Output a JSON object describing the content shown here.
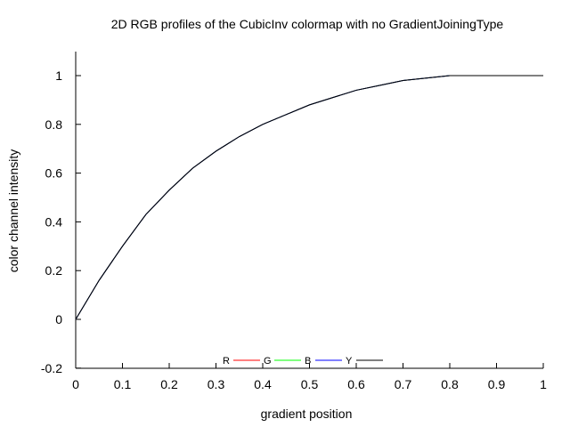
{
  "chart_data": {
    "type": "line",
    "title": "2D RGB profiles of the CubicInv colormap with no GradientJoiningType",
    "xlabel": "gradient position",
    "ylabel": "color channel intensity",
    "xlim": [
      0,
      1
    ],
    "ylim": [
      -0.2,
      1.1
    ],
    "xticks": [
      "0",
      "0.1",
      "0.2",
      "0.3",
      "0.4",
      "0.5",
      "0.6",
      "0.7",
      "0.8",
      "0.9",
      "1"
    ],
    "yticks": [
      "-0.2",
      "0",
      "0.2",
      "0.4",
      "0.6",
      "0.8",
      "1"
    ],
    "grid": false,
    "legend_position": "bottom-center",
    "series": [
      {
        "name": "R",
        "color": "#ff0000",
        "x": [
          0,
          0.05,
          0.1,
          0.15,
          0.2,
          0.25,
          0.3,
          0.35,
          0.4,
          0.45,
          0.5,
          0.55,
          0.6,
          0.65,
          0.7,
          0.75,
          0.8,
          0.85,
          0.9,
          0.95,
          1
        ],
        "y": [
          0,
          0.16,
          0.3,
          0.43,
          0.53,
          0.62,
          0.69,
          0.75,
          0.8,
          0.84,
          0.88,
          0.91,
          0.94,
          0.96,
          0.98,
          0.99,
          1.0,
          1.0,
          1.0,
          1.0,
          1.0
        ]
      },
      {
        "name": "G",
        "color": "#00ff00",
        "x": [
          0,
          0.05,
          0.1,
          0.15,
          0.2,
          0.25,
          0.3,
          0.35,
          0.4,
          0.45,
          0.5,
          0.55,
          0.6,
          0.65,
          0.7,
          0.75,
          0.8,
          0.85,
          0.9,
          0.95,
          1
        ],
        "y": [
          0,
          0.16,
          0.3,
          0.43,
          0.53,
          0.62,
          0.69,
          0.75,
          0.8,
          0.84,
          0.88,
          0.91,
          0.94,
          0.96,
          0.98,
          0.99,
          1.0,
          1.0,
          1.0,
          1.0,
          1.0
        ]
      },
      {
        "name": "B",
        "color": "#0000ff",
        "x": [
          0,
          0.05,
          0.1,
          0.15,
          0.2,
          0.25,
          0.3,
          0.35,
          0.4,
          0.45,
          0.5,
          0.55,
          0.6,
          0.65,
          0.7,
          0.75,
          0.8,
          0.85,
          0.9,
          0.95,
          1
        ],
        "y": [
          0,
          0.16,
          0.3,
          0.43,
          0.53,
          0.62,
          0.69,
          0.75,
          0.8,
          0.84,
          0.88,
          0.91,
          0.94,
          0.96,
          0.98,
          0.99,
          1.0,
          1.0,
          1.0,
          1.0,
          1.0
        ]
      },
      {
        "name": "Y",
        "color": "#000000",
        "x": [
          0,
          0.05,
          0.1,
          0.15,
          0.2,
          0.25,
          0.3,
          0.35,
          0.4,
          0.45,
          0.5,
          0.55,
          0.6,
          0.65,
          0.7,
          0.75,
          0.8,
          0.85,
          0.9,
          0.95,
          1
        ],
        "y": [
          0,
          0.16,
          0.3,
          0.43,
          0.53,
          0.62,
          0.69,
          0.75,
          0.8,
          0.84,
          0.88,
          0.91,
          0.94,
          0.96,
          0.98,
          0.99,
          1.0,
          1.0,
          1.0,
          1.0,
          1.0
        ]
      }
    ]
  }
}
